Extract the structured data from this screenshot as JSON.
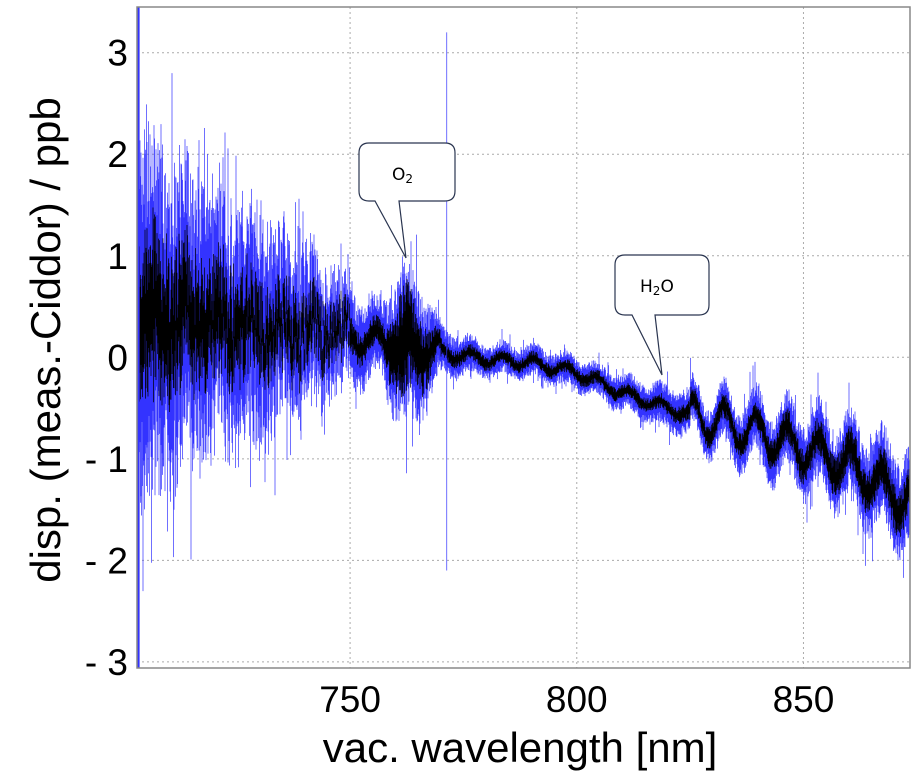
{
  "chart_data": {
    "type": "line",
    "title": "",
    "xlabel": "vac. wavelength [nm]",
    "ylabel": "disp. (meas.-Ciddor) /  ppb",
    "xlim": [
      703,
      873.5
    ],
    "ylim": [
      -3.06,
      3.45
    ],
    "grid": true,
    "x_ticks": [
      {
        "value": 750,
        "label": "750"
      },
      {
        "value": 800,
        "label": "800"
      },
      {
        "value": 850,
        "label": "850"
      }
    ],
    "y_ticks": [
      {
        "value": 3,
        "label": "3"
      },
      {
        "value": 2,
        "label": "2"
      },
      {
        "value": 1,
        "label": "1"
      },
      {
        "value": 0,
        "label": "0"
      },
      {
        "value": -1,
        "label": "- 1"
      },
      {
        "value": -2,
        "label": "- 2"
      },
      {
        "value": -3,
        "label": "- 3"
      }
    ],
    "x": [
      703,
      710,
      720,
      730,
      740,
      750,
      757,
      762,
      766,
      770,
      780,
      790,
      800,
      810,
      820,
      830,
      840,
      850,
      860,
      870,
      873.5
    ],
    "series": [
      {
        "color": "#000000",
        "values": [
          0.45,
          0.4,
          0.35,
          0.3,
          0.22,
          0.2,
          0.15,
          0.1,
          0.08,
          0.05,
          -0.02,
          -0.05,
          -0.15,
          -0.35,
          -0.5,
          -0.62,
          -0.75,
          -0.9,
          -1.05,
          -1.35,
          -1.4
        ],
        "spread": [
          0.7,
          0.6,
          0.45,
          0.35,
          0.25,
          0.15,
          0.12,
          0.5,
          0.3,
          0.08,
          0.06,
          0.06,
          0.06,
          0.06,
          0.07,
          0.1,
          0.12,
          0.15,
          0.18,
          0.2,
          0.2
        ]
      }
    ],
    "band": {
      "color": "#3333ff",
      "halfwidth": [
        1.9,
        1.5,
        1.2,
        1.0,
        0.7,
        0.45,
        0.35,
        0.8,
        0.6,
        0.22,
        0.15,
        0.15,
        0.15,
        0.16,
        0.2,
        0.25,
        0.3,
        0.35,
        0.4,
        0.45,
        0.45
      ]
    },
    "spikes": [
      {
        "x": 703.3,
        "ymin": -3.06,
        "ymax": 3.45
      },
      {
        "x": 771.3,
        "ymin": -2.1,
        "ymax": 3.2
      }
    ],
    "annotations": [
      {
        "text": "O",
        "sub": "2",
        "x": 762.5,
        "y": 0.97
      },
      {
        "text": "H",
        "sub": "2",
        "suffix": "O",
        "x": 818.5,
        "y": -0.17
      }
    ]
  }
}
